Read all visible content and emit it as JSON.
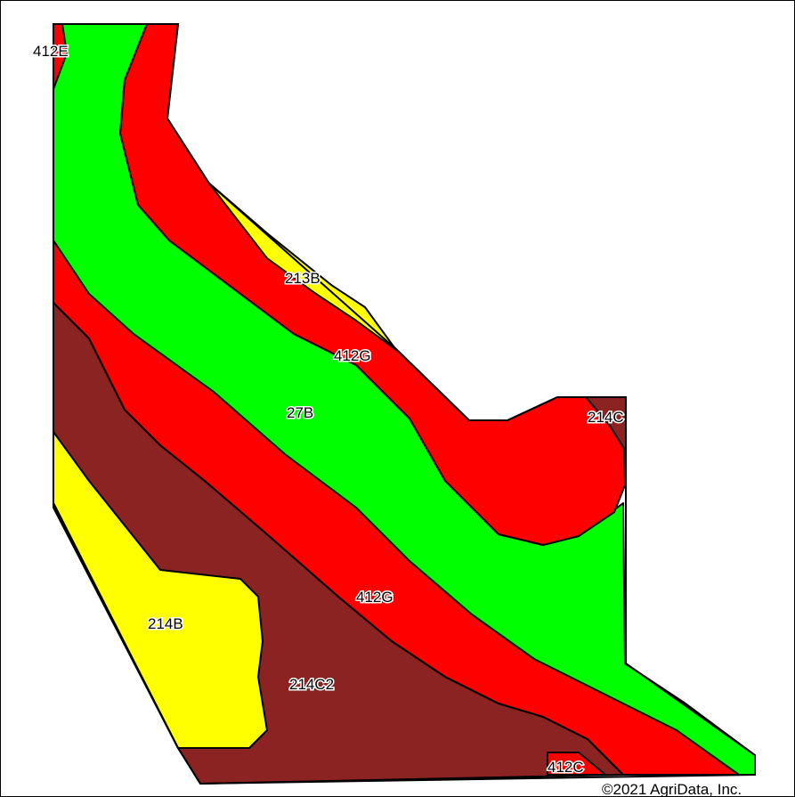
{
  "map": {
    "colors": {
      "yellow": "#ffff00",
      "red": "#ff0000",
      "green": "#00ff00",
      "brown": "#8b2323",
      "outline": "#000000",
      "background": "#ffffff"
    },
    "units": [
      {
        "symbol": "412E",
        "color": "red"
      },
      {
        "symbol": "213B",
        "color": "yellow"
      },
      {
        "symbol": "412G",
        "color": "red"
      },
      {
        "symbol": "27B",
        "color": "green"
      },
      {
        "symbol": "214C",
        "color": "brown"
      },
      {
        "symbol": "412G",
        "color": "red"
      },
      {
        "symbol": "214B",
        "color": "yellow"
      },
      {
        "symbol": "214C2",
        "color": "brown"
      },
      {
        "symbol": "412C",
        "color": "red"
      }
    ],
    "copyright": "©2021 AgriData, Inc."
  }
}
